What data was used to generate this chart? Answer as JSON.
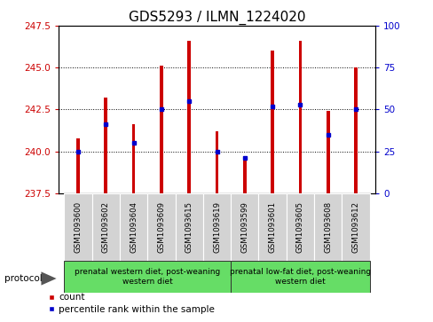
{
  "title": "GDS5293 / ILMN_1224020",
  "samples": [
    "GSM1093600",
    "GSM1093602",
    "GSM1093604",
    "GSM1093609",
    "GSM1093615",
    "GSM1093619",
    "GSM1093599",
    "GSM1093601",
    "GSM1093605",
    "GSM1093608",
    "GSM1093612"
  ],
  "bar_values": [
    240.8,
    243.2,
    241.6,
    245.1,
    246.6,
    241.2,
    239.7,
    246.0,
    246.6,
    242.4,
    245.0
  ],
  "percentile_values": [
    25,
    41,
    30,
    50,
    55,
    25,
    21,
    52,
    53,
    35,
    50
  ],
  "ylim_left": [
    237.5,
    247.5
  ],
  "ylim_right": [
    0,
    100
  ],
  "yticks_left": [
    237.5,
    240.0,
    242.5,
    245.0,
    247.5
  ],
  "yticks_right": [
    0,
    25,
    50,
    75,
    100
  ],
  "bar_color": "#cc0000",
  "marker_color": "#0000cc",
  "bar_bottom": 237.5,
  "group1_label": "prenatal western diet, post-weaning\nwestern diet",
  "group2_label": "prenatal low-fat diet, post-weaning\nwestern diet",
  "group1_indices": [
    0,
    1,
    2,
    3,
    4,
    5
  ],
  "group2_indices": [
    6,
    7,
    8,
    9,
    10
  ],
  "protocol_label": "protocol",
  "legend1": "count",
  "legend2": "percentile rank within the sample",
  "group_bg": "#66dd66",
  "tick_bg": "#d3d3d3",
  "title_fontsize": 11,
  "tick_fontsize": 7.5,
  "bar_width": 0.12
}
